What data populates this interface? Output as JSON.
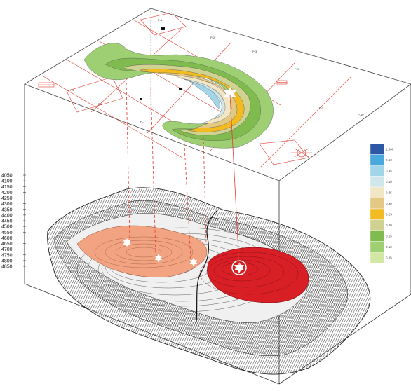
{
  "figure": {
    "depth_axis": {
      "tick_labels": [
        "4050",
        "4100",
        "4150",
        "4200",
        "4250",
        "4300",
        "4350",
        "4400",
        "4450",
        "4500",
        "4550",
        "4600",
        "4650",
        "4700",
        "4750",
        "4800",
        "4850"
      ]
    },
    "legend": {
      "colors": [
        "#2e57a6",
        "#4aa9dc",
        "#a3d5e8",
        "#cfe6ea",
        "#f2e6c4",
        "#e3c983",
        "#f2bb22",
        "#cfd290",
        "#7fbb4e",
        "#9ed073",
        "#d3e7a4"
      ],
      "labels": [
        "1.000",
        "0.50",
        "0.45",
        "0.40",
        "0.35",
        "0.30",
        "0.25",
        "0.20",
        "0.15",
        "0.10",
        "0.05"
      ]
    },
    "map_layer": {
      "plan_labels": [
        "P-1",
        "P-2",
        "P-3",
        "P-4",
        "P-5",
        "P-6",
        "P-7",
        "P-8",
        "P-9",
        "P-10"
      ]
    },
    "icons": {
      "star": "six-pointed-star-icon",
      "well": "well-symbol-icon"
    }
  }
}
